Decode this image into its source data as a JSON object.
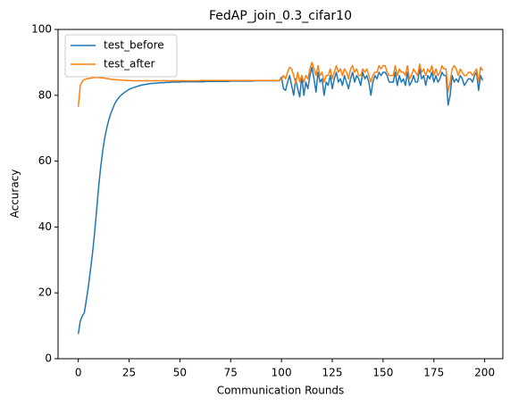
{
  "chart_data": {
    "type": "line",
    "title": "FedAP_join_0.3_cifar10",
    "xlabel": "Communication Rounds",
    "ylabel": "Accuracy",
    "x": [
      0,
      1,
      2,
      3,
      4,
      5,
      6,
      7,
      8,
      9,
      10,
      11,
      12,
      13,
      14,
      15,
      16,
      17,
      18,
      19,
      20,
      21,
      22,
      23,
      24,
      25,
      26,
      27,
      28,
      29,
      30,
      31,
      32,
      33,
      34,
      35,
      36,
      37,
      38,
      39,
      40,
      41,
      42,
      43,
      44,
      45,
      46,
      47,
      48,
      49,
      50,
      51,
      52,
      53,
      54,
      55,
      56,
      57,
      58,
      59,
      60,
      61,
      62,
      63,
      64,
      65,
      66,
      67,
      68,
      69,
      70,
      71,
      72,
      73,
      74,
      75,
      76,
      77,
      78,
      79,
      80,
      81,
      82,
      83,
      84,
      85,
      86,
      87,
      88,
      89,
      90,
      91,
      92,
      93,
      94,
      95,
      96,
      97,
      98,
      99,
      100,
      101,
      102,
      103,
      104,
      105,
      106,
      107,
      108,
      109,
      110,
      111,
      112,
      113,
      114,
      115,
      116,
      117,
      118,
      119,
      120,
      121,
      122,
      123,
      124,
      125,
      126,
      127,
      128,
      129,
      130,
      131,
      132,
      133,
      134,
      135,
      136,
      137,
      138,
      139,
      140,
      141,
      142,
      143,
      144,
      145,
      146,
      147,
      148,
      149,
      150,
      151,
      152,
      153,
      154,
      155,
      156,
      157,
      158,
      159,
      160,
      161,
      162,
      163,
      164,
      165,
      166,
      167,
      168,
      169,
      170,
      171,
      172,
      173,
      174,
      175,
      176,
      177,
      178,
      179,
      180,
      181,
      182,
      183,
      184,
      185,
      186,
      187,
      188,
      189,
      190,
      191,
      192,
      193,
      194,
      195,
      196,
      197,
      198,
      199
    ],
    "series": [
      {
        "name": "test_before",
        "color": "#1f77b4",
        "values": [
          7.5,
          11.5,
          13,
          14,
          18,
          22,
          27,
          32,
          38,
          45,
          52,
          58,
          63,
          67,
          70,
          72.5,
          74.5,
          76,
          77.5,
          78.5,
          79.3,
          80,
          80.5,
          81,
          81.4,
          81.8,
          82.1,
          82.3,
          82.5,
          82.7,
          82.9,
          83.1,
          83.2,
          83.3,
          83.4,
          83.5,
          83.6,
          83.6,
          83.7,
          83.7,
          83.8,
          83.8,
          83.8,
          83.9,
          83.9,
          83.9,
          84,
          84,
          84,
          84,
          84,
          84.1,
          84.1,
          84.1,
          84.1,
          84.1,
          84.1,
          84.1,
          84.1,
          84.1,
          84.1,
          84.1,
          84.1,
          84.2,
          84.2,
          84.2,
          84.2,
          84.2,
          84.2,
          84.2,
          84.2,
          84.2,
          84.2,
          84.2,
          84.2,
          84.3,
          84.3,
          84.3,
          84.3,
          84.3,
          84.3,
          84.3,
          84.3,
          84.3,
          84.3,
          84.3,
          84.3,
          84.4,
          84.4,
          84.4,
          84.4,
          84.4,
          84.4,
          84.4,
          84.4,
          84.4,
          84.4,
          84.4,
          84.4,
          84.4,
          85.5,
          82,
          81.5,
          84,
          86,
          83,
          80,
          85,
          82,
          79.5,
          86,
          80,
          84,
          82,
          86,
          88.5,
          85,
          81,
          87,
          84,
          85,
          80,
          84,
          83,
          86,
          82,
          85,
          87,
          84,
          85,
          83,
          86,
          84,
          82,
          85,
          87,
          84,
          86,
          85,
          83,
          87,
          85,
          86,
          84,
          80,
          84,
          86,
          85,
          87,
          86,
          87,
          87,
          86,
          84,
          84,
          84,
          87,
          83,
          86,
          84,
          85,
          83,
          87,
          83,
          84,
          86,
          84,
          84,
          88,
          85,
          86,
          83,
          86,
          85,
          87,
          84,
          86,
          84,
          85,
          87,
          86,
          86,
          77,
          80,
          86,
          84,
          85,
          84,
          86,
          85,
          83,
          84,
          85,
          85,
          84,
          86,
          87,
          81.5,
          86,
          84.5
        ]
      },
      {
        "name": "test_after",
        "color": "#ff7f0e",
        "values": [
          76.5,
          83,
          84.3,
          84.8,
          85,
          85.1,
          85.2,
          85.3,
          85.4,
          85.4,
          85.4,
          85.3,
          85.3,
          85.2,
          85.1,
          85,
          84.9,
          84.8,
          84.8,
          84.7,
          84.7,
          84.6,
          84.6,
          84.5,
          84.5,
          84.5,
          84.4,
          84.4,
          84.4,
          84.4,
          84.4,
          84.4,
          84.4,
          84.4,
          84.4,
          84.4,
          84.4,
          84.4,
          84.4,
          84.4,
          84.4,
          84.4,
          84.4,
          84.4,
          84.4,
          84.4,
          84.4,
          84.4,
          84.4,
          84.4,
          84.4,
          84.4,
          84.4,
          84.4,
          84.4,
          84.4,
          84.4,
          84.4,
          84.4,
          84.4,
          84.5,
          84.5,
          84.5,
          84.5,
          84.5,
          84.5,
          84.5,
          84.5,
          84.5,
          84.5,
          84.5,
          84.5,
          84.5,
          84.5,
          84.5,
          84.5,
          84.5,
          84.5,
          84.5,
          84.5,
          84.5,
          84.5,
          84.5,
          84.5,
          84.5,
          84.5,
          84.5,
          84.5,
          84.5,
          84.5,
          84.5,
          84.5,
          84.5,
          84.5,
          84.5,
          84.5,
          84.5,
          84.5,
          84.5,
          84.5,
          85,
          86,
          85,
          87,
          88.5,
          88,
          86,
          83.5,
          87,
          84,
          86,
          84,
          86,
          85,
          88,
          90,
          88,
          86,
          89,
          86,
          87,
          84,
          86,
          86,
          88,
          85,
          87,
          89,
          87,
          88,
          86,
          88,
          87,
          85,
          88,
          89,
          87,
          88,
          86,
          86,
          88,
          87,
          88,
          86,
          84,
          86,
          87,
          87,
          89,
          88,
          89,
          89,
          87,
          86,
          86,
          86,
          89,
          86,
          88,
          87,
          87,
          86,
          89,
          85,
          86,
          88,
          87,
          86,
          89.5,
          87,
          88,
          86,
          88,
          87,
          89,
          86,
          88,
          86,
          87,
          89,
          88,
          88,
          81,
          84,
          88,
          89,
          88,
          86,
          88,
          87,
          86,
          86,
          87,
          87,
          86,
          87,
          88,
          84,
          88.5,
          87.5
        ]
      }
    ],
    "xlim": [
      -9.95,
      208.95
    ],
    "xticks": [
      0,
      25,
      50,
      75,
      100,
      125,
      150,
      175,
      200
    ],
    "ylim": [
      0,
      100
    ],
    "yticks": [
      0,
      20,
      40,
      60,
      80,
      100
    ],
    "legend": "upper left",
    "grid": false
  }
}
